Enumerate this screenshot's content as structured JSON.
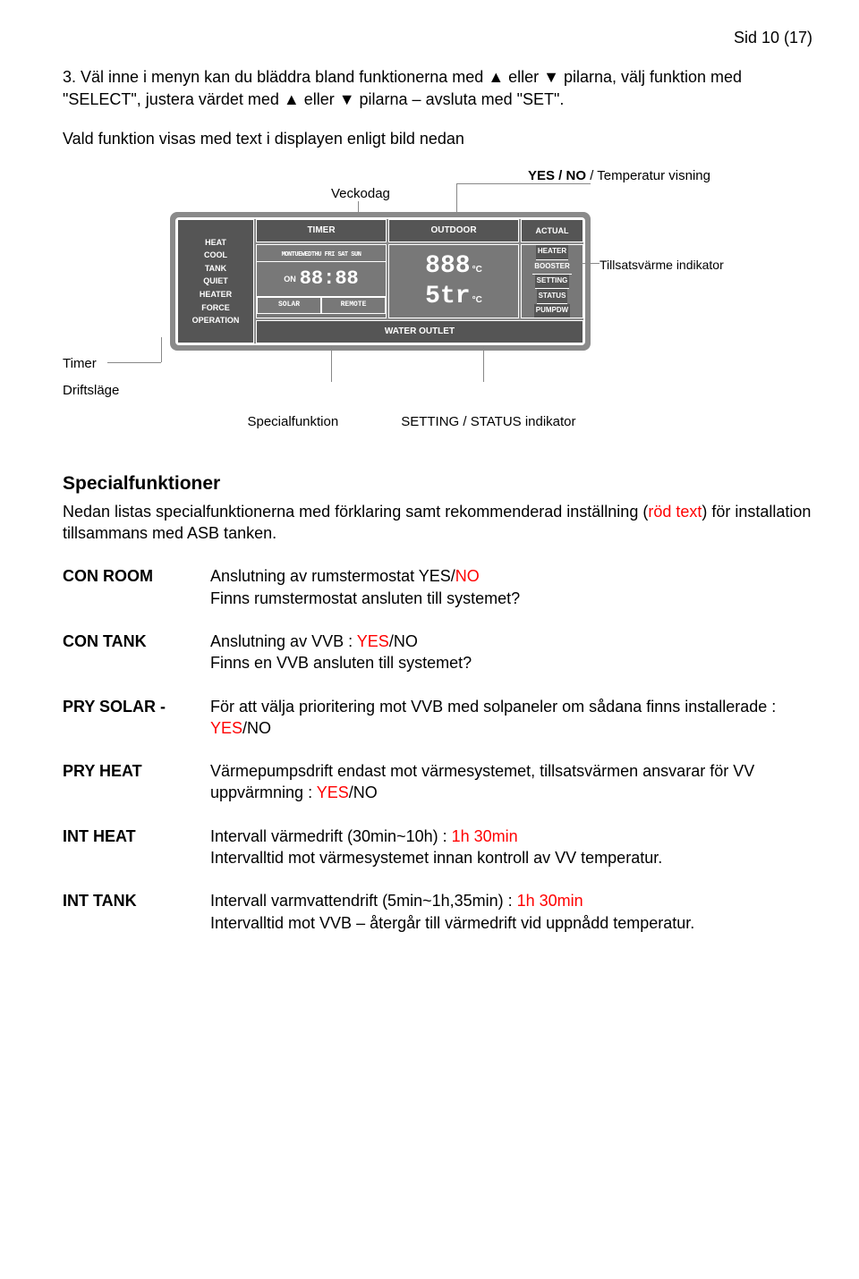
{
  "page_number_text": "Sid 10 (17)",
  "intro": {
    "step3": "3. Väl inne i menyn  kan du bläddra bland funktionerna med ▲ eller ▼ pilarna, välj funktion med \"SELECT\", justera värdet med ▲ eller ▼ pilarna – avsluta med \"SET\".",
    "subline": "Vald funktion visas med text i displayen enligt bild nedan"
  },
  "diagram": {
    "labels": {
      "yesno": "YES / NO",
      "yesno_suffix": " / Temperatur visning",
      "veckodag": "Veckodag",
      "driftslage": "Driftsläge",
      "timer": "Timer",
      "tillsats": "Tillsatsvärme indikator",
      "specialfunktion": "Specialfunktion",
      "setting_status": "SETTING / STATUS indikator"
    },
    "lcd": {
      "modes": [
        "HEAT",
        "COOL",
        "TANK",
        "QUIET",
        "HEATER",
        "FORCE",
        "OPERATION"
      ],
      "timer_hdr": "TIMER",
      "outdoor_hdr": "OUTDOOR",
      "actual": "ACTUAL",
      "days": "MONTUEWEDTHU FRI SAT SUN",
      "on": "ON",
      "clock": "88:88",
      "solar": "SOLAR",
      "remote": "REMOTE",
      "outdoor_val": "888",
      "outdoor_unit": "°C",
      "outlet_val": "5tr",
      "outlet_unit": "°C",
      "heater": "HEATER",
      "booster": "BOOSTER",
      "setting": "SETTING",
      "status": "STATUS",
      "pumpdw": "PUMPDW",
      "water_outlet": "WATER OUTLET"
    }
  },
  "specialfunktioner": {
    "heading": "Specialfunktioner",
    "intro_pre": "Nedan listas specialfunktionerna med förklaring samt rekommenderad inställning (",
    "intro_red": "röd text",
    "intro_post": ") för installation tillsammans med ASB tanken.",
    "rows": [
      {
        "key": "CON ROOM",
        "pre": "Anslutning av rumstermostat YES/",
        "red": "NO",
        "post": "\nFinns rumstermostat ansluten till systemet?"
      },
      {
        "key": "CON TANK",
        "pre": "Anslutning av VVB : ",
        "red": "YES",
        "post": "/NO\nFinns en VVB ansluten till systemet?"
      },
      {
        "key": "PRY SOLAR -",
        "pre": "För att välja prioritering mot VVB med solpaneler om sådana finns installerade : ",
        "red": "YES",
        "post": "/NO"
      },
      {
        "key": "PRY HEAT",
        "pre": "Värmepumpsdrift endast mot värmesystemet, tillsatsvärmen ansvarar för VV uppvärmning : ",
        "red": "YES",
        "post": "/NO"
      },
      {
        "key": "INT HEAT",
        "pre": "Intervall värmedrift (30min~10h) : ",
        "red": "1h 30min",
        "post": "\nIntervalltid mot värmesystemet innan kontroll av VV temperatur."
      },
      {
        "key": "INT TANK",
        "pre": "Intervall varmvattendrift (5min~1h,35min) : ",
        "red": "1h 30min",
        "post": "\nIntervalltid mot VVB – återgår till värmedrift vid uppnådd temperatur."
      }
    ]
  }
}
